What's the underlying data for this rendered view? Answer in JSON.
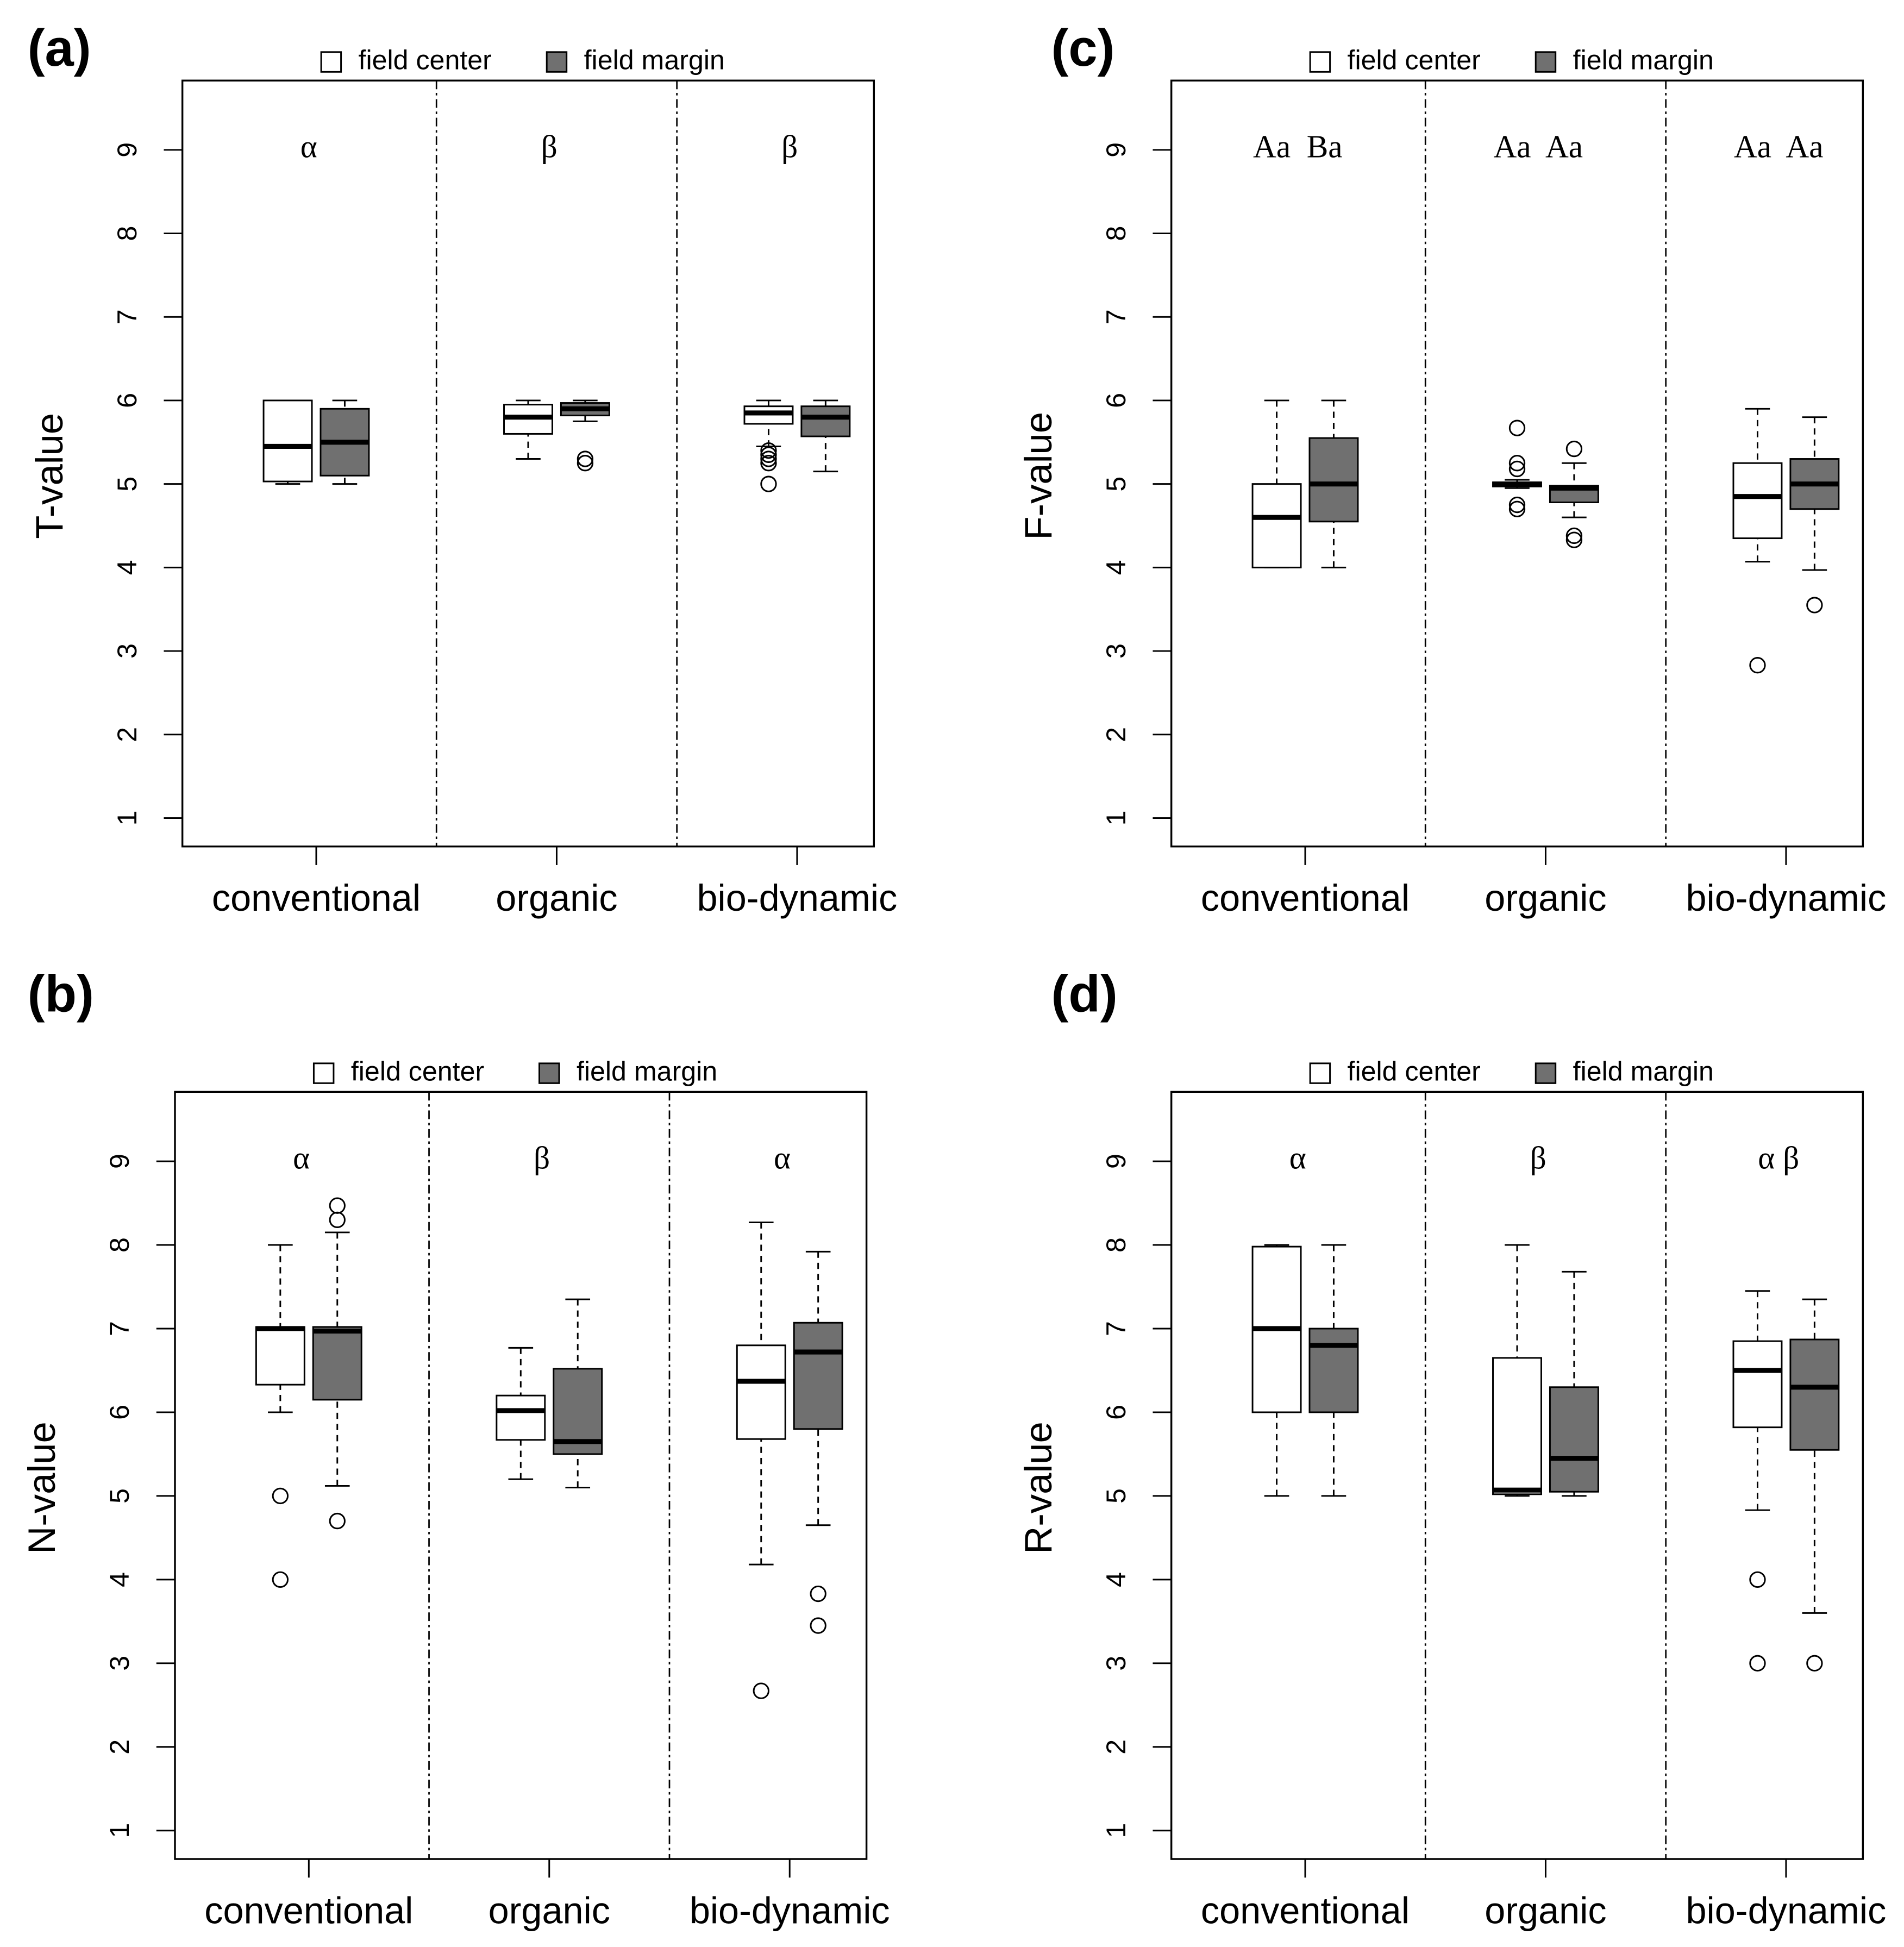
{
  "chart_data": [
    {
      "type": "box",
      "label": "(a)",
      "ylabel": "T-value",
      "categories": [
        "conventional",
        "organic",
        "bio-dynamic"
      ],
      "annotations": [
        "α",
        "β",
        "β"
      ],
      "ylim": [
        0.66,
        9.83
      ],
      "yticks": [
        1,
        2,
        3,
        4,
        5,
        6,
        7,
        8,
        9
      ],
      "series": [
        {
          "name": "field center",
          "color": "#ffffff",
          "values": [
            {
              "whisker_low": 5.0,
              "q1": 5.03,
              "median": 5.45,
              "q3": 6.0,
              "whisker_high": 6.0,
              "outliers": []
            },
            {
              "whisker_low": 5.3,
              "q1": 5.6,
              "median": 5.8,
              "q3": 5.95,
              "whisker_high": 6.0,
              "outliers": []
            },
            {
              "whisker_low": 5.45,
              "q1": 5.72,
              "median": 5.85,
              "q3": 5.93,
              "whisker_high": 6.0,
              "outliers": [
                5.4,
                5.35,
                5.3,
                5.25,
                5.0
              ]
            }
          ]
        },
        {
          "name": "field margin",
          "color": "#707070",
          "values": [
            {
              "whisker_low": 5.0,
              "q1": 5.1,
              "median": 5.5,
              "q3": 5.9,
              "whisker_high": 6.0,
              "outliers": []
            },
            {
              "whisker_low": 5.75,
              "q1": 5.82,
              "median": 5.9,
              "q3": 5.97,
              "whisker_high": 6.0,
              "outliers": [
                5.3,
                5.25
              ]
            },
            {
              "whisker_low": 5.15,
              "q1": 5.57,
              "median": 5.8,
              "q3": 5.93,
              "whisker_high": 6.0,
              "outliers": []
            }
          ]
        }
      ]
    },
    {
      "type": "box",
      "label": "(b)",
      "ylabel": "N-value",
      "categories": [
        "conventional",
        "organic",
        "bio-dynamic"
      ],
      "annotations": [
        "α",
        "β",
        "α"
      ],
      "ylim": [
        0.66,
        9.83
      ],
      "yticks": [
        1,
        2,
        3,
        4,
        5,
        6,
        7,
        8,
        9
      ],
      "series": [
        {
          "name": "field center",
          "color": "#ffffff",
          "values": [
            {
              "whisker_low": 6.0,
              "q1": 6.33,
              "median": 7.0,
              "q3": 7.02,
              "whisker_high": 8.0,
              "outliers": [
                5.0,
                4.0
              ]
            },
            {
              "whisker_low": 5.2,
              "q1": 5.67,
              "median": 6.02,
              "q3": 6.2,
              "whisker_high": 6.77,
              "outliers": []
            },
            {
              "whisker_low": 4.18,
              "q1": 5.68,
              "median": 6.37,
              "q3": 6.8,
              "whisker_high": 8.27,
              "outliers": [
                2.67
              ]
            }
          ]
        },
        {
          "name": "field margin",
          "color": "#707070",
          "values": [
            {
              "whisker_low": 5.12,
              "q1": 6.15,
              "median": 6.97,
              "q3": 7.02,
              "whisker_high": 8.15,
              "outliers": [
                8.47,
                8.3,
                4.7
              ]
            },
            {
              "whisker_low": 5.1,
              "q1": 5.5,
              "median": 5.65,
              "q3": 6.52,
              "whisker_high": 7.35,
              "outliers": []
            },
            {
              "whisker_low": 4.65,
              "q1": 5.8,
              "median": 6.72,
              "q3": 7.07,
              "whisker_high": 7.92,
              "outliers": [
                3.83,
                3.45
              ]
            }
          ]
        }
      ]
    },
    {
      "type": "box",
      "label": "(c)",
      "ylabel": "F-value",
      "categories": [
        "conventional",
        "organic",
        "bio-dynamic"
      ],
      "annotations": [
        "Aa  Ba",
        "Aa  Aa",
        "Aa  Aa"
      ],
      "ylim": [
        0.66,
        9.83
      ],
      "yticks": [
        1,
        2,
        3,
        4,
        5,
        6,
        7,
        8,
        9
      ],
      "series": [
        {
          "name": "field center",
          "color": "#ffffff",
          "values": [
            {
              "whisker_low": 4.0,
              "q1": 4.0,
              "median": 4.6,
              "q3": 5.0,
              "whisker_high": 6.0,
              "outliers": []
            },
            {
              "whisker_low": 4.95,
              "q1": 4.97,
              "median": 5.0,
              "q3": 5.02,
              "whisker_high": 5.05,
              "outliers": [
                5.67,
                5.25,
                5.18,
                4.75,
                4.7
              ]
            },
            {
              "whisker_low": 4.07,
              "q1": 4.35,
              "median": 4.85,
              "q3": 5.25,
              "whisker_high": 5.9,
              "outliers": [
                2.83
              ]
            }
          ]
        },
        {
          "name": "field margin",
          "color": "#707070",
          "values": [
            {
              "whisker_low": 4.0,
              "q1": 4.55,
              "median": 5.0,
              "q3": 5.55,
              "whisker_high": 6.0,
              "outliers": []
            },
            {
              "whisker_low": 4.6,
              "q1": 4.78,
              "median": 4.95,
              "q3": 4.98,
              "whisker_high": 5.25,
              "outliers": [
                5.42,
                4.38,
                4.33
              ]
            },
            {
              "whisker_low": 3.97,
              "q1": 4.7,
              "median": 5.0,
              "q3": 5.3,
              "whisker_high": 5.8,
              "outliers": [
                3.55
              ]
            }
          ]
        }
      ]
    },
    {
      "type": "box",
      "label": "(d)",
      "ylabel": "R-value",
      "categories": [
        "conventional",
        "organic",
        "bio-dynamic"
      ],
      "annotations": [
        "α",
        "β",
        "α β"
      ],
      "ylim": [
        0.66,
        9.83
      ],
      "yticks": [
        1,
        2,
        3,
        4,
        5,
        6,
        7,
        8,
        9
      ],
      "series": [
        {
          "name": "field center",
          "color": "#ffffff",
          "values": [
            {
              "whisker_low": 5.0,
              "q1": 6.0,
              "median": 7.0,
              "q3": 7.98,
              "whisker_high": 8.0,
              "outliers": []
            },
            {
              "whisker_low": 5.0,
              "q1": 5.02,
              "median": 5.07,
              "q3": 6.65,
              "whisker_high": 8.0,
              "outliers": []
            },
            {
              "whisker_low": 4.83,
              "q1": 5.82,
              "median": 6.5,
              "q3": 6.85,
              "whisker_high": 7.45,
              "outliers": [
                4.0,
                3.0
              ]
            }
          ]
        },
        {
          "name": "field margin",
          "color": "#707070",
          "values": [
            {
              "whisker_low": 5.0,
              "q1": 6.0,
              "median": 6.8,
              "q3": 7.0,
              "whisker_high": 8.0,
              "outliers": []
            },
            {
              "whisker_low": 5.0,
              "q1": 5.05,
              "median": 5.45,
              "q3": 6.3,
              "whisker_high": 7.68,
              "outliers": []
            },
            {
              "whisker_low": 3.6,
              "q1": 5.55,
              "median": 6.3,
              "q3": 6.87,
              "whisker_high": 7.35,
              "outliers": [
                3.0
              ]
            }
          ]
        }
      ]
    }
  ]
}
